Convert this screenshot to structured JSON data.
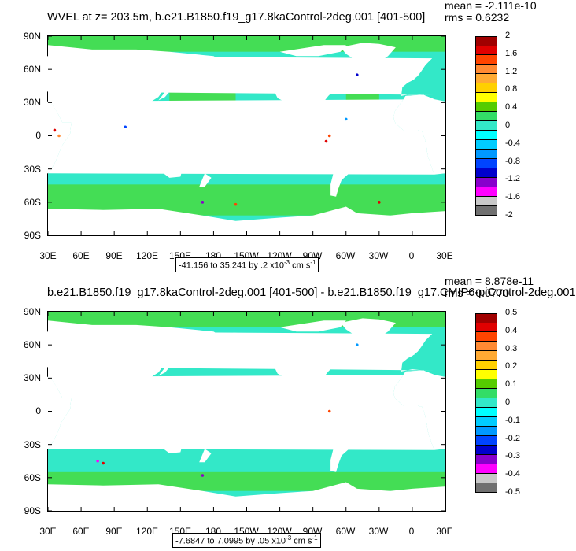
{
  "top": {
    "title": "WVEL at z= 203.5m, b.e21.B1850.f19_g17.8kaControl-2deg.001 [401-500]",
    "mean": "mean = -2.111e-10",
    "rms": "rms = 0.6232",
    "range_text": "-41.156 to 35.241 by .2 x10",
    "range_exp": "-3",
    "range_units": " cm s",
    "range_units_exp": "-1",
    "colorbar_labels": [
      "2",
      "1.6",
      "1.2",
      "0.8",
      "0.4",
      "0",
      "-0.4",
      "-0.8",
      "-1.2",
      "-1.6",
      "-2"
    ]
  },
  "bottom": {
    "title": "b.e21.B1850.f19_g17.8kaControl-2deg.001 [401-500] - b.e21.B1850.f19_g17.CMIP6-piControl-2deg.001",
    "mean": "mean = 8.878e-11",
    "rms": "rms = 0.0770",
    "range_text": "-7.6847 to 7.0995 by .05 x10",
    "range_exp": "-3",
    "range_units": " cm s",
    "range_units_exp": "-1",
    "colorbar_labels": [
      "0.5",
      "0.4",
      "0.3",
      "0.2",
      "0.1",
      "0",
      "-0.1",
      "-0.2",
      "-0.3",
      "-0.4",
      "-0.5"
    ]
  },
  "axes": {
    "lat_labels": [
      "90N",
      "60N",
      "30N",
      "0",
      "30S",
      "60S",
      "90S"
    ],
    "lon_labels": [
      "30E",
      "60E",
      "90E",
      "120E",
      "150E",
      "180",
      "150W",
      "120W",
      "90W",
      "60W",
      "30W",
      "0",
      "30E"
    ]
  },
  "colors": {
    "colorbar": [
      "#a00000",
      "#e00000",
      "#ff4400",
      "#ff8a33",
      "#ffaa33",
      "#ffd000",
      "#ffff00",
      "#55cc00",
      "#33dd66",
      "#33e8c8",
      "#00ffff",
      "#00ccff",
      "#0099ff",
      "#0044ff",
      "#0000cc",
      "#8800cc",
      "#ff00ff",
      "#c8c8c8",
      "#707070"
    ],
    "ocean_main": "#33e8c8",
    "ocean_green": "#44dd55",
    "land": "#ffffff"
  }
}
